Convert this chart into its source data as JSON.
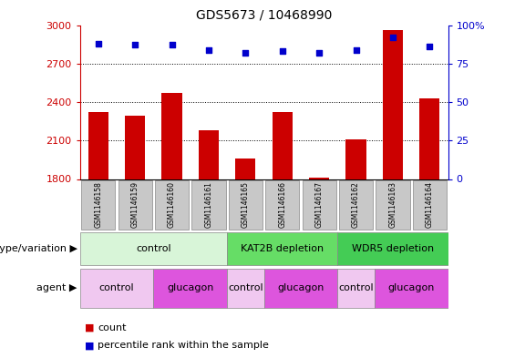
{
  "title": "GDS5673 / 10468990",
  "samples": [
    "GSM1146158",
    "GSM1146159",
    "GSM1146160",
    "GSM1146161",
    "GSM1146165",
    "GSM1146166",
    "GSM1146167",
    "GSM1146162",
    "GSM1146163",
    "GSM1146164"
  ],
  "counts": [
    2320,
    2290,
    2470,
    2180,
    1960,
    2320,
    1810,
    2110,
    2960,
    2430
  ],
  "percentiles": [
    88,
    87,
    87,
    84,
    82,
    83,
    82,
    84,
    92,
    86
  ],
  "ylim_left": [
    1800,
    3000
  ],
  "ylim_right": [
    0,
    100
  ],
  "yticks_left": [
    1800,
    2100,
    2400,
    2700,
    3000
  ],
  "yticks_right": [
    0,
    25,
    50,
    75,
    100
  ],
  "bar_color": "#cc0000",
  "marker_color": "#0000cc",
  "genotype_groups": [
    {
      "label": "control",
      "start": 0,
      "end": 4,
      "color": "#d8f5d8"
    },
    {
      "label": "KAT2B depletion",
      "start": 4,
      "end": 7,
      "color": "#66dd66"
    },
    {
      "label": "WDR5 depletion",
      "start": 7,
      "end": 10,
      "color": "#44cc55"
    }
  ],
  "agent_groups": [
    {
      "label": "control",
      "start": 0,
      "end": 2,
      "color": "#f0c8f0"
    },
    {
      "label": "glucagon",
      "start": 2,
      "end": 4,
      "color": "#dd55dd"
    },
    {
      "label": "control",
      "start": 4,
      "end": 5,
      "color": "#f0c8f0"
    },
    {
      "label": "glucagon",
      "start": 5,
      "end": 7,
      "color": "#dd55dd"
    },
    {
      "label": "control",
      "start": 7,
      "end": 8,
      "color": "#f0c8f0"
    },
    {
      "label": "glucagon",
      "start": 8,
      "end": 10,
      "color": "#dd55dd"
    }
  ],
  "sample_box_color": "#c8c8c8",
  "genotype_label": "genotype/variation",
  "agent_label": "agent",
  "legend_count_label": "count",
  "legend_pct_label": "percentile rank within the sample",
  "background_color": "#ffffff"
}
